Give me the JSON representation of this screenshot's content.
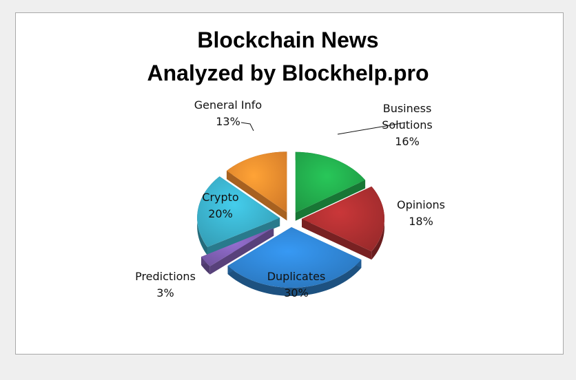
{
  "chart_data": {
    "type": "pie",
    "title": [
      "Blockchain News",
      "Analyzed by Blockhelp.pro"
    ],
    "slices": [
      {
        "label_lines": [
          "Business",
          "Solutions"
        ],
        "pct": "16%",
        "value": 16,
        "color": "#22a94b"
      },
      {
        "label_lines": [
          "Opinions"
        ],
        "pct": "18%",
        "value": 18,
        "color": "#ab2f30"
      },
      {
        "label_lines": [
          "Duplicates"
        ],
        "pct": "30%",
        "value": 30,
        "color": "#2f82cf"
      },
      {
        "label_lines": [
          "Predictions"
        ],
        "pct": "3%",
        "value": 3,
        "color": "#7d5db0"
      },
      {
        "label_lines": [
          "Crypto"
        ],
        "pct": "20%",
        "value": 20,
        "color": "#3aaec8"
      },
      {
        "label_lines": [
          "General Info"
        ],
        "pct": "13%",
        "value": 13,
        "color": "#ee8a2e"
      }
    ],
    "legend": "none"
  }
}
